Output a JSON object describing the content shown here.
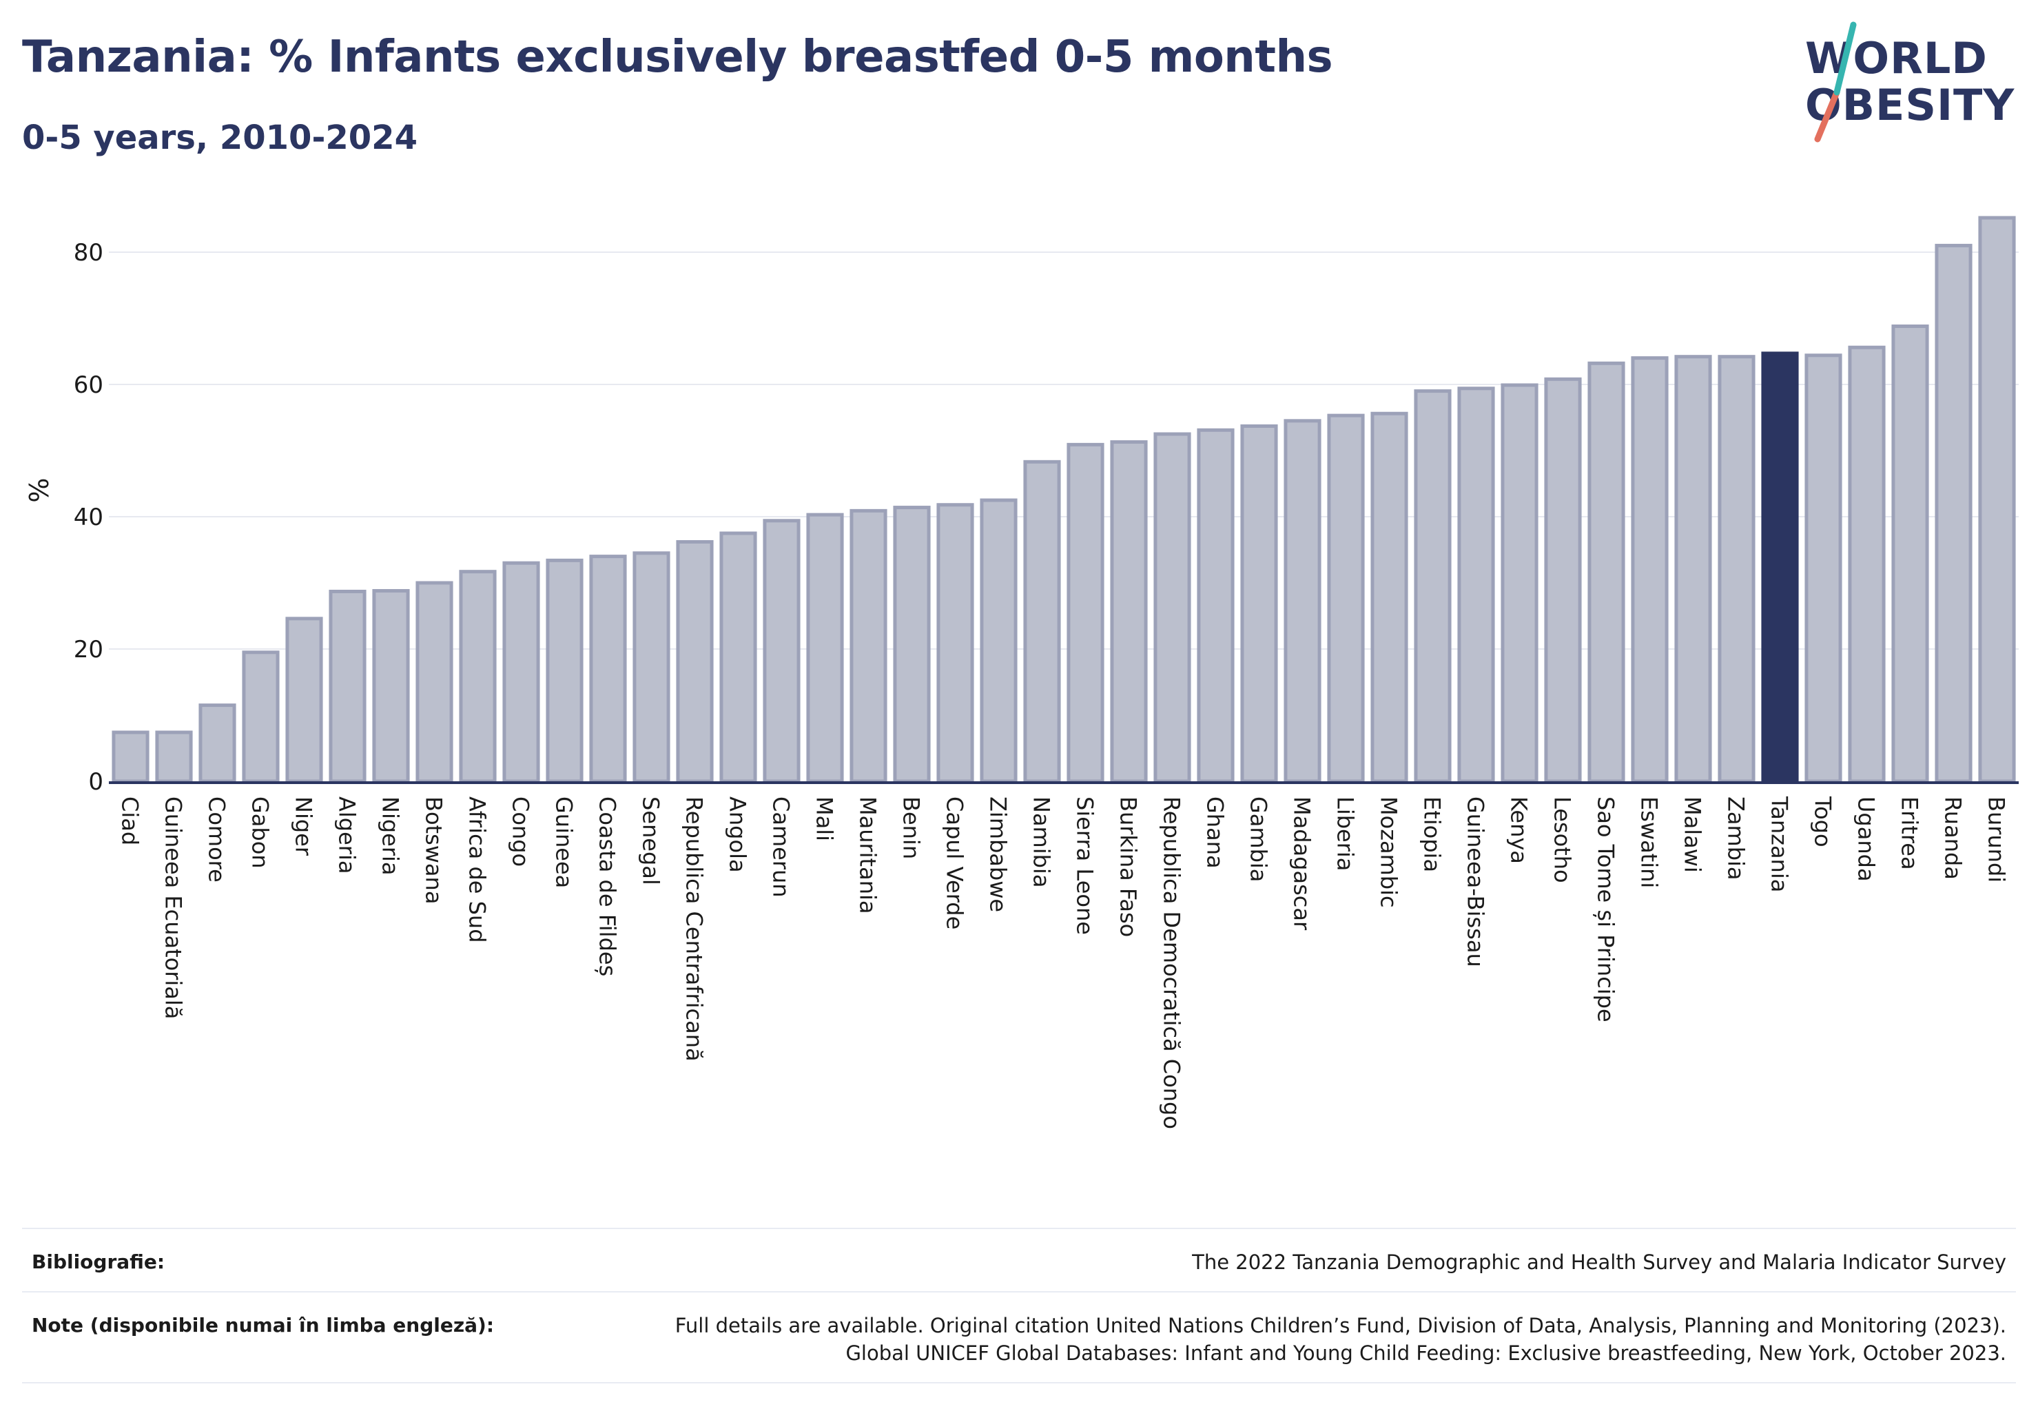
{
  "title": "Tanzania: % Infants exclusively breastfed 0-5 months",
  "subtitle": "0-5 years, 2010-2024",
  "logo": {
    "line1": "WORLD",
    "line2": "OBESITY",
    "text_color": "#2b3561",
    "slash_colors": [
      "#e3705e",
      "#36b5b0"
    ]
  },
  "colors": {
    "bar_fill": "#bbbfcd",
    "bar_stroke": "#9ca1b8",
    "highlight": "#2b3561",
    "grid": "#e7e9f0",
    "axis": "#2b3561",
    "text": "#1b1b1b"
  },
  "chart_data": {
    "type": "bar",
    "title": "Tanzania: % Infants exclusively breastfed 0-5 months",
    "subtitle": "0-5 years, 2010-2024",
    "xlabel": "",
    "ylabel": "%",
    "ylim": [
      0,
      88
    ],
    "yticks": [
      0,
      20,
      40,
      60,
      80
    ],
    "grid": true,
    "highlight": "Tanzania",
    "categories": [
      "Ciad",
      "Guineea Ecuatorială",
      "Comore",
      "Gabon",
      "Niger",
      "Algeria",
      "Nigeria",
      "Botswana",
      "Africa de Sud",
      "Congo",
      "Guineea",
      "Coasta de Fildeș",
      "Senegal",
      "Republica Centrafricană",
      "Angola",
      "Camerun",
      "Mali",
      "Mauritania",
      "Benin",
      "Capul Verde",
      "Zimbabwe",
      "Namibia",
      "Sierra Leone",
      "Burkina Faso",
      "Republica Democratică Congo",
      "Ghana",
      "Gambia",
      "Madagascar",
      "Liberia",
      "Mozambic",
      "Etiopia",
      "Guineea-Bissau",
      "Kenya",
      "Lesotho",
      "Sao Tome și Principe",
      "Eswatini",
      "Malawi",
      "Zambia",
      "Tanzania",
      "Togo",
      "Uganda",
      "Eritrea",
      "Ruanda",
      "Burundi"
    ],
    "values": [
      7.4,
      7.4,
      11.5,
      19.5,
      24.6,
      28.7,
      28.8,
      30.0,
      31.7,
      33.0,
      33.4,
      34.0,
      34.5,
      36.2,
      37.5,
      39.4,
      40.3,
      40.9,
      41.4,
      41.8,
      42.5,
      48.3,
      50.9,
      51.3,
      52.5,
      53.1,
      53.7,
      54.5,
      55.3,
      55.6,
      59.0,
      59.4,
      59.9,
      60.8,
      63.2,
      64.0,
      64.2,
      64.2,
      64.7,
      64.4,
      65.6,
      68.8,
      81.0,
      85.2
    ]
  },
  "footer": {
    "bibliography_label": "Bibliografie:",
    "bibliography_value": "The 2022 Tanzania Demographic and Health Survey and Malaria Indicator Survey",
    "notes_label": "Note (disponibile numai în limba engleză):",
    "notes_line1": "Full details are available. Original citation United Nations Children’s Fund, Division of Data, Analysis, Planning and Monitoring (2023).",
    "notes_line2": "Global UNICEF Global Databases: Infant and Young Child Feeding: Exclusive breastfeeding, New York, October 2023."
  }
}
